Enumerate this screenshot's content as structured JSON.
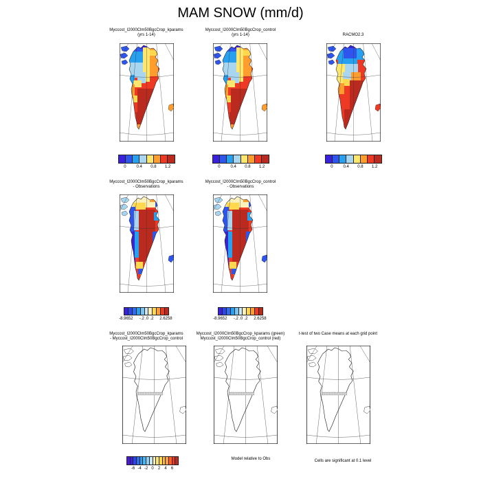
{
  "page_title": "MAM SNOW (mm/d)",
  "palette": {
    "deep_blue": "#3a22dd",
    "blue": "#2e55ee",
    "sky": "#28a0f0",
    "pale_blue": "#a8d6f0",
    "very_pale_blue": "#cfe8f6",
    "cream": "#fdf0b8",
    "yellow": "#ffe76e",
    "gold": "#ffd84d",
    "orange": "#ff9d2e",
    "red": "#ee3a24",
    "dark_red": "#bb2a1f"
  },
  "rows": [
    {
      "panels": [
        {
          "title_lines": [
            "Myccost_I2000Clm50BgcCrop_kparams",
            "(yrs 1-14)"
          ],
          "map_style": "model"
        },
        {
          "title_lines": [
            "Myccost_I2000Clm50BgcCrop_control",
            "(yrs 1-14)"
          ],
          "map_style": "model"
        },
        {
          "title_lines": [
            "RACMO2.3"
          ],
          "map_style": "racmo"
        }
      ],
      "colorbar": {
        "colors": [
          "#3a22dd",
          "#2e55ee",
          "#28a0f0",
          "#a8d6f0",
          "#ffe76e",
          "#ff9d2e",
          "#ee3a24",
          "#bb2a1f"
        ],
        "ticks": [
          {
            "label": "0",
            "pos": 12.5
          },
          {
            "label": "0.4",
            "pos": 37.5
          },
          {
            "label": "0.8",
            "pos": 62.5
          },
          {
            "label": "1.2",
            "pos": 87.5
          }
        ],
        "repeat": 3
      }
    },
    {
      "panels": [
        {
          "title_lines": [
            "Myccost_I2000Clm50BgcCrop_kparams",
            "- Observations"
          ],
          "map_style": "diff"
        },
        {
          "title_lines": [
            "Myccost_I2000Clm50BgcCrop_control",
            "- Observations"
          ],
          "map_style": "diff"
        }
      ],
      "colorbar": {
        "colors": [
          "#3a22dd",
          "#2e45e8",
          "#2e6cf0",
          "#28a0f0",
          "#7cc4f0",
          "#cfe8f6",
          "#fdf0b8",
          "#ffd84d",
          "#ff9d2e",
          "#ee3a24",
          "#bb2a1f"
        ],
        "ticks": [
          {
            "label": "-8.9652",
            "pos": 5
          },
          {
            "label": "-.2",
            "pos": 40
          },
          {
            "label": ".0",
            "pos": 51
          },
          {
            "label": ".2",
            "pos": 62
          },
          {
            "label": "2.6258",
            "pos": 93
          }
        ],
        "repeat": 2
      }
    },
    {
      "panels": [
        {
          "title_lines": [
            "Myccost_I2000Clm50BgcCrop_kparams",
            "- Myccost_I2000Clm50BgcCrop_control"
          ],
          "map_style": "outline"
        },
        {
          "title_lines": [
            "Myccost_I2000Clm50BgcCrop_kparams (green)",
            "Myccost_I2000Clm50BgcCrop_control (red)"
          ],
          "map_style": "outline"
        },
        {
          "title_lines": [
            "t-test of two Case means at each grid point"
          ],
          "map_style": "outline"
        }
      ],
      "colorbar": {
        "colors": [
          "#4a18e0",
          "#3a22dd",
          "#2e45e8",
          "#2e6cf0",
          "#28a0f0",
          "#4eb4f0",
          "#8fd0f2",
          "#c8e6f6",
          "#fdf0b8",
          "#ffe76e",
          "#ffd84d",
          "#ffb83a",
          "#ff9d2e",
          "#ff6226",
          "#ee3a24",
          "#bb2a1f"
        ],
        "ticks": [
          {
            "label": "-6",
            "pos": 12.5
          },
          {
            "label": "-4",
            "pos": 25
          },
          {
            "label": "-2",
            "pos": 37.5
          },
          {
            "label": "0",
            "pos": 50
          },
          {
            "label": "2",
            "pos": 62.5
          },
          {
            "label": "4",
            "pos": 75
          },
          {
            "label": "6",
            "pos": 87.5
          }
        ],
        "repeat": 1
      }
    }
  ],
  "captions": [
    {
      "text": "Model relative to Obs"
    },
    {
      "text": "Cells are significant at 0.1 level"
    }
  ],
  "chart_data": {
    "type": "heatmap",
    "title": "MAM SNOW (mm/d)",
    "variable": "SNOW",
    "season": "MAM",
    "units": "mm/d",
    "region": "Greenland",
    "panels": [
      {
        "name": "Myccost_I2000Clm50BgcCrop_kparams",
        "years": "yrs 1-14",
        "kind": "climatology",
        "colorbar_ticks": [
          0,
          0.4,
          0.8,
          1.2
        ]
      },
      {
        "name": "Myccost_I2000Clm50BgcCrop_control",
        "years": "yrs 1-14",
        "kind": "climatology",
        "colorbar_ticks": [
          0,
          0.4,
          0.8,
          1.2
        ]
      },
      {
        "name": "RACMO2.3",
        "kind": "observations",
        "colorbar_ticks": [
          0,
          0.4,
          0.8,
          1.2
        ]
      },
      {
        "name": "Myccost_I2000Clm50BgcCrop_kparams - Observations",
        "kind": "difference",
        "min": -8.9652,
        "max": 2.6258,
        "colorbar_ticks": [
          -0.2,
          0,
          0.2
        ]
      },
      {
        "name": "Myccost_I2000Clm50BgcCrop_control - Observations",
        "kind": "difference",
        "min": -8.9652,
        "max": 2.6258,
        "colorbar_ticks": [
          -0.2,
          0,
          0.2
        ]
      },
      {
        "name": "Myccost_I2000Clm50BgcCrop_kparams - Myccost_I2000Clm50BgcCrop_control",
        "kind": "difference",
        "colorbar_ticks": [
          -6,
          -4,
          -2,
          0,
          2,
          4,
          6
        ]
      },
      {
        "name": "Myccost_I2000Clm50BgcCrop_kparams (green) vs Myccost_I2000Clm50BgcCrop_control (red)",
        "kind": "comparison"
      },
      {
        "name": "t-test of two Case means at each grid point",
        "kind": "significance",
        "note": "Cells are significant at 0.1 level",
        "footnote": "Model relative to Obs"
      }
    ]
  }
}
